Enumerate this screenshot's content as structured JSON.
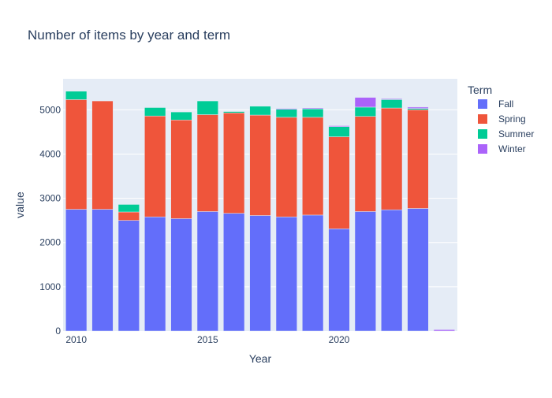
{
  "chart_data": {
    "type": "bar",
    "stacked": true,
    "title": "Number of items by year and term",
    "xlabel": "Year",
    "ylabel": "value",
    "ylim": [
      0,
      5700
    ],
    "xlim": [
      2009.5,
      2024.5
    ],
    "grid": true,
    "legend_position": "right",
    "x": [
      2010,
      2011,
      2012,
      2013,
      2014,
      2015,
      2016,
      2017,
      2018,
      2019,
      2020,
      2021,
      2022,
      2023,
      2024
    ],
    "x_ticks": [
      2010,
      2015,
      2020
    ],
    "y_ticks": [
      0,
      1000,
      2000,
      3000,
      4000,
      5000
    ],
    "legend_title": "Term",
    "series": [
      {
        "name": "Fall",
        "color": "#636efa",
        "values": [
          2750,
          2750,
          2500,
          2580,
          2540,
          2700,
          2660,
          2610,
          2580,
          2620,
          2310,
          2700,
          2740,
          2770,
          0
        ]
      },
      {
        "name": "Spring",
        "color": "#ef553b",
        "values": [
          2480,
          2450,
          190,
          2280,
          2230,
          2190,
          2270,
          2270,
          2250,
          2210,
          2080,
          2150,
          2300,
          2230,
          0
        ]
      },
      {
        "name": "Summer",
        "color": "#00cc96",
        "values": [
          190,
          0,
          170,
          190,
          180,
          310,
          30,
          200,
          180,
          190,
          230,
          210,
          190,
          30,
          0
        ]
      },
      {
        "name": "Winter",
        "color": "#ab63fa",
        "values": [
          0,
          0,
          0,
          0,
          0,
          0,
          0,
          0,
          20,
          20,
          20,
          220,
          20,
          30,
          30
        ]
      }
    ]
  }
}
